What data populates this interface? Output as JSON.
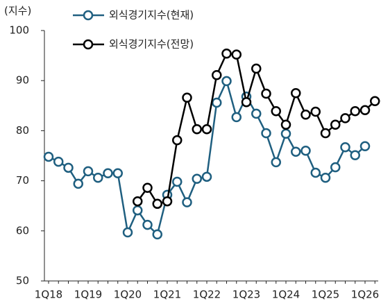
{
  "chart_data": {
    "type": "line",
    "y_axis_label": "(지수)",
    "categories": [
      "1Q18",
      null,
      null,
      null,
      "1Q19",
      null,
      null,
      null,
      "1Q20",
      null,
      null,
      null,
      "1Q21",
      null,
      null,
      null,
      "1Q22",
      null,
      null,
      null,
      "1Q23",
      null,
      null,
      null,
      "1Q24",
      null,
      null,
      null,
      "1Q25",
      null,
      null,
      null,
      "1Q26",
      null
    ],
    "series": [
      {
        "name": "외식경기지수(현재)",
        "color": "#1f5f80",
        "values": [
          74.8,
          73.8,
          72.6,
          69.4,
          71.9,
          70.6,
          71.5,
          71.5,
          59.7,
          64.1,
          61.2,
          59.3,
          67.2,
          69.8,
          65.7,
          70.4,
          70.8,
          85.6,
          89.9,
          82.7,
          86.8,
          83.4,
          79.5,
          73.7,
          79.4,
          75.8,
          76.0,
          71.6,
          70.6,
          72.7,
          76.7,
          75.1,
          76.9,
          null
        ]
      },
      {
        "name": "외식경기지수(전망)",
        "color": "#000000",
        "values": [
          null,
          null,
          null,
          null,
          null,
          null,
          null,
          null,
          null,
          65.9,
          68.6,
          65.4,
          65.9,
          78.1,
          86.6,
          80.3,
          80.3,
          91.1,
          95.4,
          95.2,
          85.7,
          92.4,
          87.4,
          83.9,
          81.2,
          87.5,
          83.2,
          83.8,
          79.5,
          81.2,
          82.5,
          83.9,
          84.1,
          85.9
        ]
      }
    ],
    "ylim": [
      50,
      100
    ],
    "yticks": [
      50,
      60,
      70,
      80,
      90,
      100
    ],
    "grid": false
  }
}
